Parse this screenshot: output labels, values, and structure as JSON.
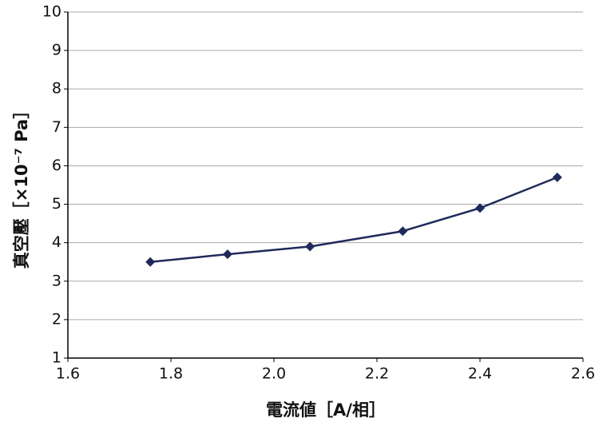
{
  "chart_data": {
    "type": "line",
    "x_label": "電流値［A/相］",
    "y_label": "真空壓［×10⁻⁷ Pa］",
    "x": [
      1.76,
      1.91,
      2.07,
      2.25,
      2.4,
      2.55
    ],
    "series": [
      {
        "color": "#1f2a5a",
        "values": [
          3.5,
          3.7,
          3.9,
          4.3,
          4.9,
          5.7
        ]
      }
    ],
    "xlim": [
      1.6,
      2.6
    ],
    "xticks": [
      1.6,
      1.8,
      {
        "value": 2,
        "label": "2.0"
      },
      2.2,
      2.4,
      2.6
    ],
    "ylim": [
      1,
      10
    ],
    "yticks": [
      1,
      2,
      3,
      4,
      5,
      6,
      7,
      8,
      9,
      10
    ],
    "grid": true
  }
}
